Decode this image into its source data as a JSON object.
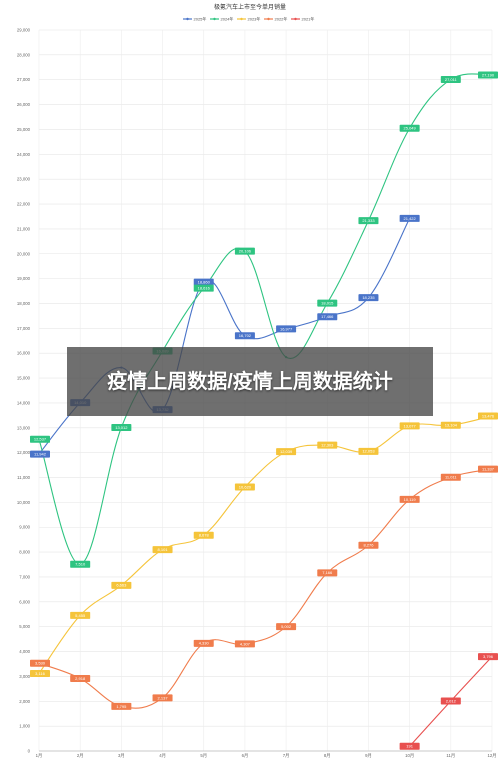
{
  "overlay": {
    "text": "疫情上周数据/疫情上周数据统计"
  },
  "chart_data": {
    "type": "line",
    "title": "极氪汽车上市至今单月销量",
    "xlabel": "",
    "ylabel": "",
    "categories": [
      "1月",
      "2月",
      "3月",
      "4月",
      "5月",
      "6月",
      "7月",
      "8月",
      "9月",
      "10月",
      "11月",
      "12月"
    ],
    "ylim": [
      0,
      29000
    ],
    "yticks": [
      0,
      1000,
      2000,
      3000,
      4000,
      5000,
      6000,
      7000,
      8000,
      9000,
      10000,
      11000,
      12000,
      13000,
      14000,
      15000,
      16000,
      17000,
      18000,
      19000,
      20000,
      21000,
      22000,
      23000,
      24000,
      25000,
      26000,
      27000,
      28000,
      29000
    ],
    "ytick_labels": [
      "0",
      "1,000",
      "2,000",
      "3,000",
      "4,000",
      "5,000",
      "6,000",
      "7,000",
      "8,000",
      "9,000",
      "10,000",
      "11,000",
      "12,000",
      "13,000",
      "14,000",
      "15,000",
      "16,000",
      "17,000",
      "18,000",
      "19,000",
      "20,000",
      "21,000",
      "22,000",
      "23,000",
      "24,000",
      "25,000",
      "26,000",
      "27,000",
      "28,000",
      "29,000"
    ],
    "grid": true,
    "legend": "top",
    "series": [
      {
        "name": "2025年",
        "color": "#4a74c9",
        "values": [
          11942,
          14010,
          15422,
          13732,
          18860,
          16702,
          16977,
          17466,
          18235,
          21422,
          null,
          null
        ],
        "labels": [
          "11,942",
          "14,010",
          "",
          "13,732",
          "18,860",
          "16,702",
          "16,977",
          "17,466",
          "18,235",
          "21,422",
          "",
          ""
        ]
      },
      {
        "name": "2024年",
        "color": "#2ec481",
        "values": [
          12537,
          7510,
          13012,
          16089,
          18616,
          20106,
          15843,
          18015,
          21333,
          25049,
          27011,
          27190
        ],
        "labels": [
          "12,537",
          "7,510",
          "13,012",
          "16,089",
          "18,616",
          "20,106",
          "",
          "18,015",
          "21,333",
          "25,049",
          "27,011",
          "27,190"
        ]
      },
      {
        "name": "2023年",
        "color": "#f5c43a",
        "values": [
          3116,
          5455,
          6663,
          8101,
          8678,
          10620,
          12039,
          12303,
          12053,
          13077,
          13104,
          13476
        ],
        "labels": [
          "3,116",
          "5,455",
          "6,663",
          "8,101",
          "8,678",
          "10,620",
          "12,039",
          "12,303",
          "12,053",
          "13,077",
          "13,104",
          "13,476"
        ]
      },
      {
        "name": "2022年",
        "color": "#f07c4c",
        "values": [
          3530,
          2918,
          1795,
          2137,
          4330,
          4307,
          5002,
          7166,
          8276,
          10119,
          11011,
          11337
        ],
        "labels": [
          "3,530",
          "2,918",
          "1,795",
          "2,137",
          "4,330",
          "4,307",
          "5,002",
          "7,166",
          "8,276",
          "10,119",
          "11,011",
          "11,337"
        ]
      },
      {
        "name": "2021年",
        "color": "#e8504f",
        "values": [
          null,
          null,
          null,
          null,
          null,
          null,
          null,
          null,
          null,
          191,
          2012,
          3796
        ],
        "labels": [
          "",
          "",
          "",
          "",
          "",
          "",
          "",
          "",
          "",
          "191",
          "2,012",
          "3,796"
        ]
      }
    ]
  }
}
